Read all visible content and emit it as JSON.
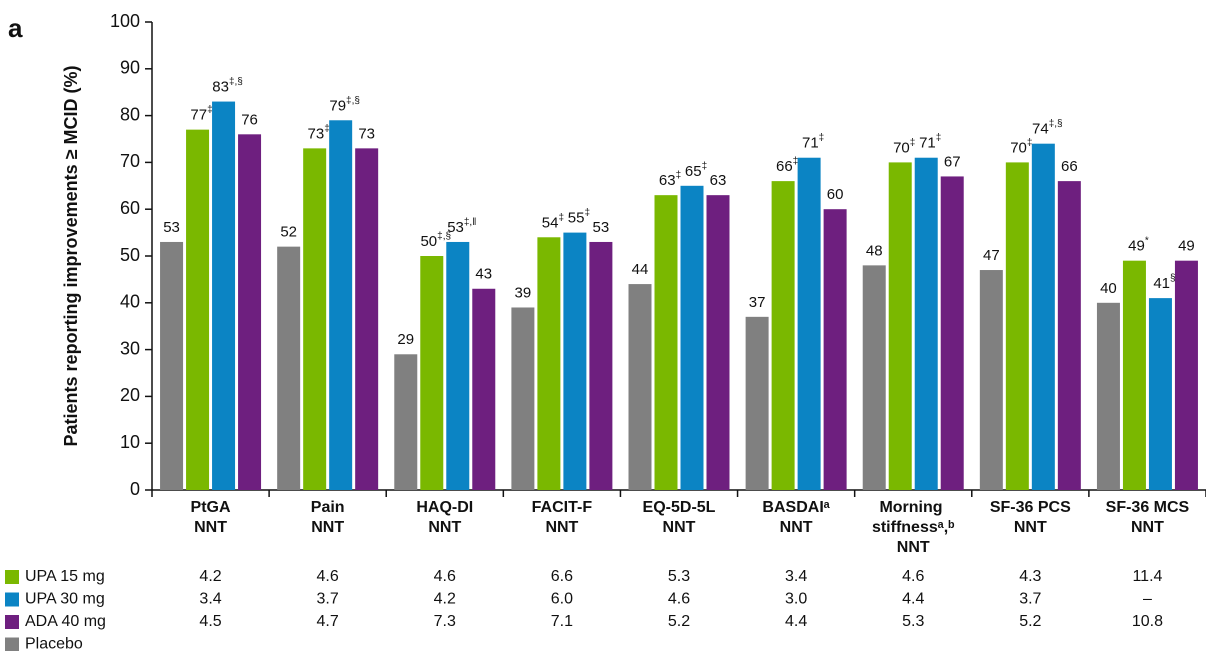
{
  "chart_data": {
    "type": "bar",
    "panel_label": "a",
    "y_label": "Patients reporting improvements ≥ MCID (%)",
    "categories": [
      "PtGA",
      "Pain",
      "HAQ-DI",
      "FACIT-F",
      "EQ-5D-5L",
      "BASDAIᵃ",
      "Morning stiffnessᵃ,ᵇ",
      "SF-36 PCS",
      "SF-36 MCS"
    ],
    "category_suffix": "NNT",
    "ylim": [
      0,
      100
    ],
    "yticks": [
      0,
      10,
      20,
      30,
      40,
      50,
      60,
      70,
      80,
      90,
      100
    ],
    "series": [
      {
        "name": "Placebo",
        "color": "#808080",
        "values": [
          53,
          52,
          29,
          39,
          44,
          37,
          48,
          47,
          40
        ]
      },
      {
        "name": "UPA 15 mg",
        "color": "#7ab800",
        "values": [
          77,
          73,
          50,
          54,
          63,
          66,
          70,
          70,
          49
        ],
        "value_labels": [
          "77‡",
          "73‡",
          "50‡,§",
          "54‡",
          "63‡",
          "66‡",
          "70‡",
          "70‡",
          "49*"
        ],
        "nnt": [
          "4.2",
          "4.6",
          "4.6",
          "6.6",
          "5.3",
          "3.4",
          "4.6",
          "4.3",
          "11.4"
        ]
      },
      {
        "name": "UPA 30 mg",
        "color": "#0b84c4",
        "values": [
          83,
          79,
          53,
          55,
          65,
          71,
          71,
          74,
          41
        ],
        "value_labels": [
          "83‡,§",
          "79‡,§",
          "53‡,‖",
          "55‡",
          "65‡",
          "71‡",
          "71‡",
          "74‡,§",
          "41§"
        ],
        "nnt": [
          "3.4",
          "3.7",
          "4.2",
          "6.0",
          "4.6",
          "3.0",
          "4.4",
          "3.7",
          "–"
        ]
      },
      {
        "name": "ADA 40 mg",
        "color": "#6e1f7f",
        "values": [
          76,
          73,
          43,
          53,
          63,
          60,
          67,
          66,
          49
        ],
        "nnt": [
          "4.5",
          "4.7",
          "7.3",
          "7.1",
          "5.2",
          "4.4",
          "5.3",
          "5.2",
          "10.8"
        ]
      }
    ]
  }
}
